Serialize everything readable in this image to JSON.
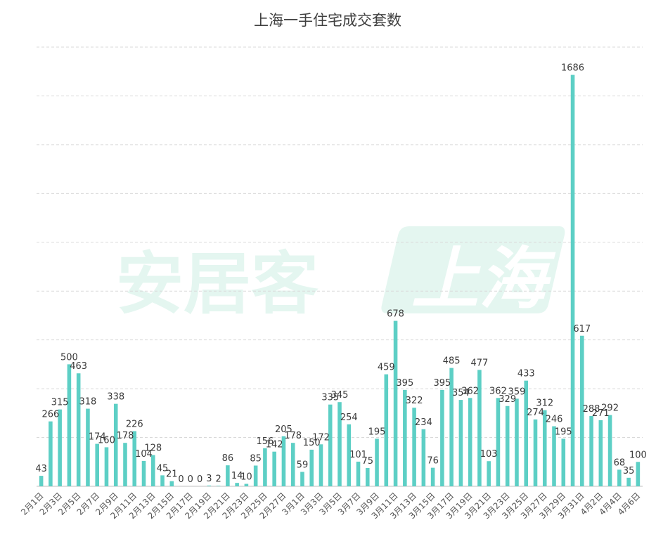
{
  "chart_data": {
    "type": "bar",
    "title": "上海一手住宅成交套数",
    "watermark": {
      "brand": "安居客",
      "city": "上海"
    },
    "categories": [
      "2月1日",
      "2月2日",
      "2月3日",
      "2月4日",
      "2月5日",
      "2月6日",
      "2月7日",
      "2月8日",
      "2月9日",
      "2月10日",
      "2月11日",
      "2月12日",
      "2月13日",
      "2月14日",
      "2月15日",
      "2月16日",
      "2月17日",
      "2月18日",
      "2月19日",
      "2月20日",
      "2月21日",
      "2月22日",
      "2月23日",
      "2月24日",
      "2月25日",
      "2月26日",
      "2月27日",
      "2月28日",
      "3月1日",
      "3月2日",
      "3月3日",
      "3月4日",
      "3月5日",
      "3月6日",
      "3月7日",
      "3月8日",
      "3月9日",
      "3月10日",
      "3月11日",
      "3月12日",
      "3月13日",
      "3月14日",
      "3月15日",
      "3月16日",
      "3月17日",
      "3月18日",
      "3月19日",
      "3月20日",
      "3月21日",
      "3月22日",
      "3月23日",
      "3月24日",
      "3月25日",
      "3月26日",
      "3月27日",
      "3月28日",
      "3月29日",
      "3月30日",
      "3月31日",
      "4月1日",
      "4月2日",
      "4月3日",
      "4月4日",
      "4月5日",
      "4月6日"
    ],
    "tick_labels": [
      "2月1日",
      "2月3日",
      "2月5日",
      "2月7日",
      "2月9日",
      "2月11日",
      "2月13日",
      "2月15日",
      "2月17日",
      "2月19日",
      "2月21日",
      "2月23日",
      "2月25日",
      "2月27日",
      "3月1日",
      "3月3日",
      "3月5日",
      "3月7日",
      "3月9日",
      "3月11日",
      "3月13日",
      "3月15日",
      "3月17日",
      "3月19日",
      "3月21日",
      "3月23日",
      "3月25日",
      "3月27日",
      "3月29日",
      "3月31日",
      "4月2日",
      "4月4日",
      "4月6日"
    ],
    "values": [
      43,
      266,
      315,
      500,
      463,
      318,
      174,
      160,
      338,
      178,
      226,
      104,
      128,
      45,
      21,
      0,
      0,
      0,
      3,
      2,
      86,
      14,
      10,
      85,
      156,
      142,
      205,
      178,
      59,
      150,
      172,
      335,
      345,
      254,
      101,
      75,
      195,
      459,
      678,
      395,
      322,
      234,
      76,
      395,
      485,
      354,
      362,
      477,
      103,
      362,
      329,
      359,
      433,
      274,
      312,
      246,
      195,
      1686,
      617,
      288,
      271,
      292,
      68,
      35,
      100
    ],
    "ylim": [
      0,
      1800
    ],
    "grid": true,
    "bar_color": "#5dcfc5"
  }
}
